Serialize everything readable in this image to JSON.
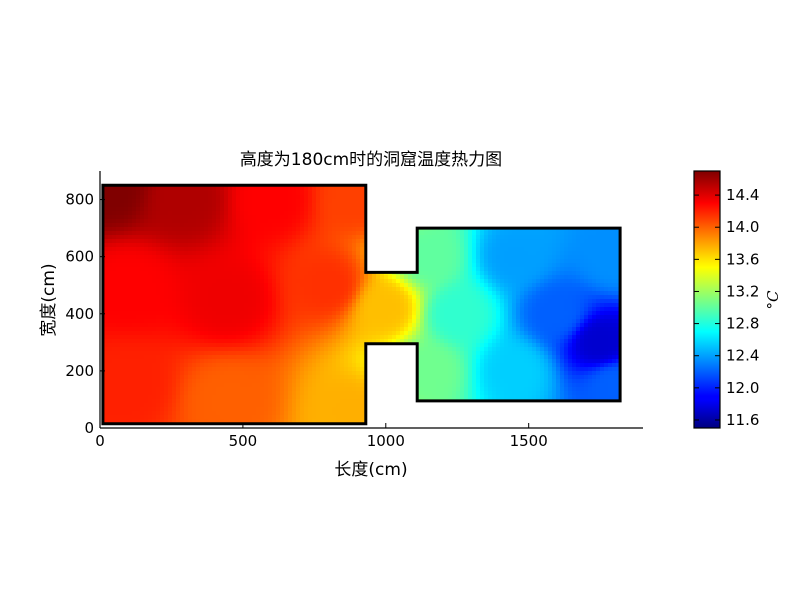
{
  "chart_data": {
    "type": "heatmap",
    "title": "高度为180cm时的洞窟温度热力图",
    "xlabel": "长度(cm)",
    "ylabel": "宽度(cm)",
    "xlim": [
      0,
      1900
    ],
    "ylim": [
      0,
      900
    ],
    "x_ticks": [
      0,
      500,
      1000,
      1500
    ],
    "y_ticks": [
      0,
      200,
      400,
      600,
      800
    ],
    "colorbar": {
      "label": "°C",
      "colormap": "jet",
      "range": [
        11.5,
        14.7
      ],
      "ticks": [
        "14.4",
        "14.0",
        "13.6",
        "13.2",
        "12.8",
        "12.4",
        "12.0",
        "11.6"
      ],
      "tick_values": [
        14.4,
        14.0,
        13.6,
        13.2,
        12.8,
        12.4,
        12.0,
        11.6
      ]
    },
    "grid": false,
    "cave_outline": [
      [
        10,
        15
      ],
      [
        10,
        850
      ],
      [
        930,
        850
      ],
      [
        930,
        545
      ],
      [
        1110,
        545
      ],
      [
        1110,
        700
      ],
      [
        1820,
        700
      ],
      [
        1820,
        95
      ],
      [
        1110,
        95
      ],
      [
        1110,
        295
      ],
      [
        930,
        295
      ],
      [
        930,
        15
      ]
    ],
    "temperature_samples": [
      {
        "x": 30,
        "y": 840,
        "t": 14.7
      },
      {
        "x": 300,
        "y": 800,
        "t": 14.55
      },
      {
        "x": 600,
        "y": 800,
        "t": 14.3
      },
      {
        "x": 900,
        "y": 800,
        "t": 14.1
      },
      {
        "x": 100,
        "y": 500,
        "t": 14.3
      },
      {
        "x": 450,
        "y": 450,
        "t": 14.35
      },
      {
        "x": 800,
        "y": 500,
        "t": 14.15
      },
      {
        "x": 100,
        "y": 150,
        "t": 14.2
      },
      {
        "x": 450,
        "y": 100,
        "t": 14.0
      },
      {
        "x": 880,
        "y": 60,
        "t": 13.75
      },
      {
        "x": 1000,
        "y": 420,
        "t": 13.7
      },
      {
        "x": 1150,
        "y": 600,
        "t": 13.0
      },
      {
        "x": 1150,
        "y": 200,
        "t": 13.05
      },
      {
        "x": 1250,
        "y": 400,
        "t": 12.85
      },
      {
        "x": 1450,
        "y": 600,
        "t": 12.4
      },
      {
        "x": 1450,
        "y": 200,
        "t": 12.55
      },
      {
        "x": 1600,
        "y": 400,
        "t": 12.2
      },
      {
        "x": 1750,
        "y": 300,
        "t": 11.75
      },
      {
        "x": 1800,
        "y": 600,
        "t": 12.35
      },
      {
        "x": 1800,
        "y": 150,
        "t": 12.2
      }
    ]
  },
  "icons": {
    "colorbar": "jet-gradient-bar"
  }
}
